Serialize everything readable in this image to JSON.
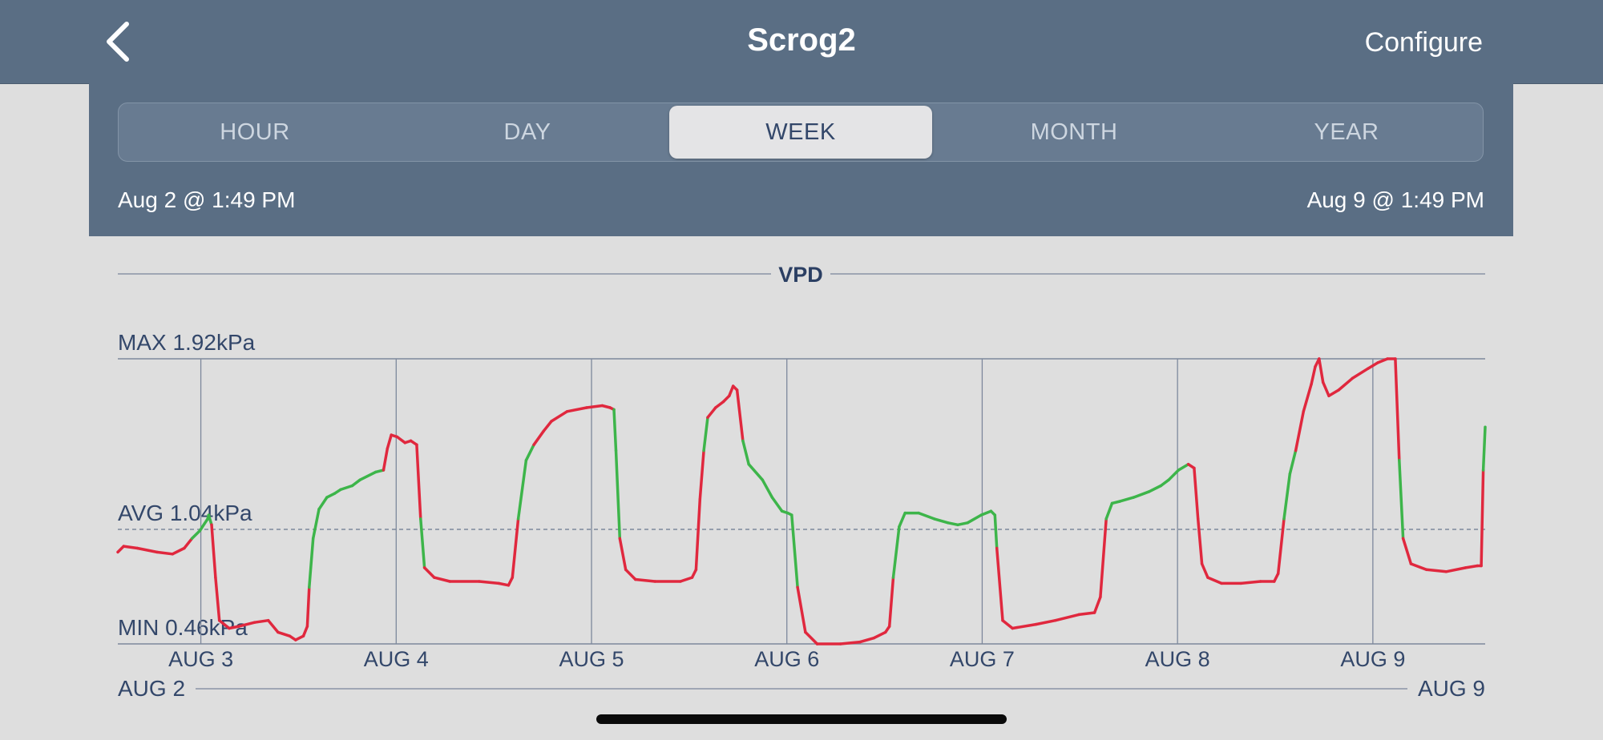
{
  "nav": {
    "title": "Scrog2",
    "configure_label": "Configure",
    "back_icon": "chevron-left-icon"
  },
  "range_tabs": {
    "items": [
      "HOUR",
      "DAY",
      "WEEK",
      "MONTH",
      "YEAR"
    ],
    "selected": "WEEK"
  },
  "range": {
    "start": "Aug 2 @ 1:49 PM",
    "end": "Aug 9 @ 1:49 PM"
  },
  "colors": {
    "header_bg": "#5a6e84",
    "in_range": "#3db54a",
    "out_of_range": "#e0283e",
    "text": "#33476a"
  },
  "chart_data": {
    "type": "line",
    "title": "VPD",
    "unit": "kPa",
    "max_label": "MAX 1.92kPa",
    "avg_label": "AVG 1.04kPa",
    "min_label": "MIN 0.46kPa",
    "max": 1.92,
    "avg": 1.04,
    "min": 0.46,
    "ylim": [
      0.46,
      1.92
    ],
    "xlim": [
      0,
      7
    ],
    "x_ticks": [
      {
        "x": 0.425,
        "label": "AUG 3"
      },
      {
        "x": 1.425,
        "label": "AUG 4"
      },
      {
        "x": 2.425,
        "label": "AUG 5"
      },
      {
        "x": 3.425,
        "label": "AUG 6"
      },
      {
        "x": 4.425,
        "label": "AUG 7"
      },
      {
        "x": 5.425,
        "label": "AUG 8"
      },
      {
        "x": 6.425,
        "label": "AUG 9"
      }
    ],
    "range_start_label": "AUG 2",
    "range_end_label": "AUG 9",
    "x_unit": "days since Aug 2 @ 1:49 PM",
    "series": [
      {
        "values": [
          [
            0.0,
            0.93
          ],
          [
            0.03,
            0.96
          ],
          [
            0.1,
            0.95
          ],
          [
            0.2,
            0.93
          ],
          [
            0.28,
            0.92
          ],
          [
            0.34,
            0.95
          ],
          [
            0.38,
            1.0
          ],
          [
            0.42,
            1.04
          ],
          [
            0.46,
            1.1
          ],
          [
            0.465,
            1.12
          ],
          [
            0.48,
            1.07
          ],
          [
            0.5,
            0.8
          ],
          [
            0.52,
            0.58
          ],
          [
            0.57,
            0.54
          ],
          [
            0.62,
            0.55
          ],
          [
            0.7,
            0.57
          ],
          [
            0.77,
            0.58
          ],
          [
            0.82,
            0.52
          ],
          [
            0.88,
            0.5
          ],
          [
            0.91,
            0.48
          ],
          [
            0.95,
            0.5
          ],
          [
            0.97,
            0.55
          ],
          [
            0.98,
            0.75
          ],
          [
            1.0,
            1.0
          ],
          [
            1.03,
            1.15
          ],
          [
            1.07,
            1.21
          ],
          [
            1.11,
            1.23
          ],
          [
            1.14,
            1.25
          ],
          [
            1.2,
            1.27
          ],
          [
            1.24,
            1.3
          ],
          [
            1.32,
            1.34
          ],
          [
            1.36,
            1.35
          ],
          [
            1.38,
            1.46
          ],
          [
            1.4,
            1.53
          ],
          [
            1.43,
            1.52
          ],
          [
            1.47,
            1.49
          ],
          [
            1.5,
            1.5
          ],
          [
            1.53,
            1.48
          ],
          [
            1.55,
            1.1
          ],
          [
            1.57,
            0.85
          ],
          [
            1.62,
            0.8
          ],
          [
            1.7,
            0.78
          ],
          [
            1.85,
            0.78
          ],
          [
            1.95,
            0.77
          ],
          [
            2.0,
            0.76
          ],
          [
            2.02,
            0.8
          ],
          [
            2.05,
            1.1
          ],
          [
            2.09,
            1.4
          ],
          [
            2.13,
            1.48
          ],
          [
            2.18,
            1.55
          ],
          [
            2.22,
            1.6
          ],
          [
            2.3,
            1.65
          ],
          [
            2.4,
            1.67
          ],
          [
            2.48,
            1.68
          ],
          [
            2.52,
            1.67
          ],
          [
            2.54,
            1.66
          ],
          [
            2.55,
            1.45
          ],
          [
            2.57,
            1.0
          ],
          [
            2.6,
            0.84
          ],
          [
            2.65,
            0.79
          ],
          [
            2.75,
            0.78
          ],
          [
            2.88,
            0.78
          ],
          [
            2.94,
            0.8
          ],
          [
            2.96,
            0.84
          ],
          [
            2.98,
            1.2
          ],
          [
            3.0,
            1.45
          ],
          [
            3.02,
            1.62
          ],
          [
            3.06,
            1.67
          ],
          [
            3.1,
            1.7
          ],
          [
            3.13,
            1.73
          ],
          [
            3.15,
            1.78
          ],
          [
            3.17,
            1.76
          ],
          [
            3.2,
            1.5
          ],
          [
            3.23,
            1.38
          ],
          [
            3.3,
            1.3
          ],
          [
            3.35,
            1.21
          ],
          [
            3.4,
            1.14
          ],
          [
            3.43,
            1.13
          ],
          [
            3.45,
            1.12
          ],
          [
            3.48,
            0.75
          ],
          [
            3.52,
            0.52
          ],
          [
            3.58,
            0.46
          ],
          [
            3.7,
            0.46
          ],
          [
            3.8,
            0.47
          ],
          [
            3.87,
            0.49
          ],
          [
            3.93,
            0.52
          ],
          [
            3.95,
            0.55
          ],
          [
            3.97,
            0.8
          ],
          [
            4.0,
            1.06
          ],
          [
            4.03,
            1.13
          ],
          [
            4.1,
            1.13
          ],
          [
            4.18,
            1.1
          ],
          [
            4.25,
            1.08
          ],
          [
            4.3,
            1.07
          ],
          [
            4.35,
            1.08
          ],
          [
            4.42,
            1.12
          ],
          [
            4.47,
            1.14
          ],
          [
            4.49,
            1.12
          ],
          [
            4.5,
            0.95
          ],
          [
            4.53,
            0.58
          ],
          [
            4.58,
            0.54
          ],
          [
            4.7,
            0.56
          ],
          [
            4.8,
            0.58
          ],
          [
            4.92,
            0.61
          ],
          [
            5.0,
            0.62
          ],
          [
            5.03,
            0.7
          ],
          [
            5.06,
            1.1
          ],
          [
            5.09,
            1.18
          ],
          [
            5.13,
            1.19
          ],
          [
            5.2,
            1.21
          ],
          [
            5.28,
            1.24
          ],
          [
            5.34,
            1.27
          ],
          [
            5.38,
            1.3
          ],
          [
            5.43,
            1.35
          ],
          [
            5.48,
            1.38
          ],
          [
            5.51,
            1.36
          ],
          [
            5.53,
            1.1
          ],
          [
            5.55,
            0.87
          ],
          [
            5.58,
            0.8
          ],
          [
            5.65,
            0.77
          ],
          [
            5.75,
            0.77
          ],
          [
            5.85,
            0.78
          ],
          [
            5.92,
            0.78
          ],
          [
            5.94,
            0.82
          ],
          [
            5.97,
            1.1
          ],
          [
            6.0,
            1.33
          ],
          [
            6.03,
            1.45
          ],
          [
            6.07,
            1.65
          ],
          [
            6.11,
            1.79
          ],
          [
            6.13,
            1.88
          ],
          [
            6.15,
            1.92
          ],
          [
            6.17,
            1.8
          ],
          [
            6.2,
            1.73
          ],
          [
            6.25,
            1.76
          ],
          [
            6.32,
            1.82
          ],
          [
            6.4,
            1.87
          ],
          [
            6.45,
            1.9
          ],
          [
            6.5,
            1.92
          ],
          [
            6.54,
            1.92
          ],
          [
            6.56,
            1.4
          ],
          [
            6.58,
            1.0
          ],
          [
            6.62,
            0.87
          ],
          [
            6.7,
            0.84
          ],
          [
            6.8,
            0.83
          ],
          [
            6.9,
            0.85
          ],
          [
            6.96,
            0.86
          ],
          [
            6.98,
            0.86
          ],
          [
            6.99,
            1.35
          ],
          [
            7.0,
            1.57
          ]
        ]
      }
    ],
    "color_rule": "green when the day's device is in its target range, red otherwise",
    "segment_colors": [
      {
        "from": 0.0,
        "to": 0.36,
        "color": "out_of_range"
      },
      {
        "from": 0.36,
        "to": 0.48,
        "color": "in_range"
      },
      {
        "from": 0.48,
        "to": 0.98,
        "color": "out_of_range"
      },
      {
        "from": 0.98,
        "to": 1.36,
        "color": "in_range"
      },
      {
        "from": 1.36,
        "to": 1.55,
        "color": "out_of_range"
      },
      {
        "from": 1.55,
        "to": 1.57,
        "color": "in_range"
      },
      {
        "from": 1.57,
        "to": 2.04,
        "color": "out_of_range"
      },
      {
        "from": 2.04,
        "to": 2.13,
        "color": "in_range"
      },
      {
        "from": 2.13,
        "to": 2.54,
        "color": "out_of_range"
      },
      {
        "from": 2.54,
        "to": 2.57,
        "color": "in_range"
      },
      {
        "from": 2.57,
        "to": 2.99,
        "color": "out_of_range"
      },
      {
        "from": 2.99,
        "to": 3.01,
        "color": "in_range"
      },
      {
        "from": 3.01,
        "to": 3.2,
        "color": "out_of_range"
      },
      {
        "from": 3.2,
        "to": 3.47,
        "color": "in_range"
      },
      {
        "from": 3.47,
        "to": 3.98,
        "color": "out_of_range"
      },
      {
        "from": 3.98,
        "to": 4.5,
        "color": "in_range"
      },
      {
        "from": 4.5,
        "to": 5.06,
        "color": "out_of_range"
      },
      {
        "from": 5.06,
        "to": 5.48,
        "color": "in_range"
      },
      {
        "from": 5.48,
        "to": 5.97,
        "color": "out_of_range"
      },
      {
        "from": 5.97,
        "to": 6.04,
        "color": "in_range"
      },
      {
        "from": 6.04,
        "to": 6.56,
        "color": "out_of_range"
      },
      {
        "from": 6.56,
        "to": 6.58,
        "color": "in_range"
      },
      {
        "from": 6.58,
        "to": 6.99,
        "color": "out_of_range"
      },
      {
        "from": 6.99,
        "to": 7.0,
        "color": "in_range"
      }
    ]
  }
}
